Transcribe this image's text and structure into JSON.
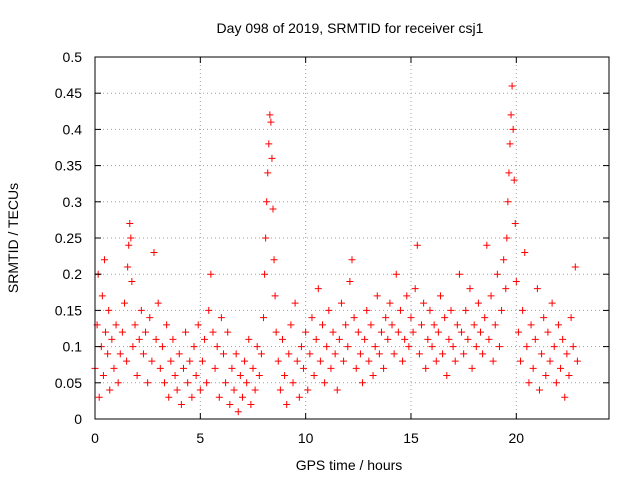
{
  "chart_data": {
    "type": "scatter",
    "title": "Day 098 of 2019, SRMTID for receiver csj1",
    "xlabel": "GPS time / hours",
    "ylabel": "SRMTID / TECUs",
    "xlim": [
      0,
      24.4
    ],
    "ylim": [
      0,
      0.5
    ],
    "x_ticks": [
      0,
      5,
      10,
      15,
      20
    ],
    "x_tick_labels": [
      "0",
      "5",
      "10",
      "15",
      "20"
    ],
    "y_ticks": [
      0,
      0.05,
      0.1,
      0.15,
      0.2,
      0.25,
      0.3,
      0.35,
      0.4,
      0.45,
      0.5
    ],
    "y_tick_labels": [
      "0",
      "0.05",
      "0.1",
      "0.15",
      "0.2",
      "0.25",
      "0.3",
      "0.35",
      "0.4",
      "0.45",
      "0.5"
    ],
    "grid": true,
    "marker": "+",
    "marker_color": "#ff0000",
    "series": [
      {
        "name": "csj1",
        "points": [
          [
            0.0,
            0.07
          ],
          [
            0.1,
            0.13
          ],
          [
            0.15,
            0.2
          ],
          [
            0.2,
            0.03
          ],
          [
            0.3,
            0.1
          ],
          [
            0.35,
            0.17
          ],
          [
            0.4,
            0.06
          ],
          [
            0.45,
            0.22
          ],
          [
            0.5,
            0.12
          ],
          [
            0.6,
            0.09
          ],
          [
            0.65,
            0.15
          ],
          [
            0.7,
            0.04
          ],
          [
            0.8,
            0.11
          ],
          [
            0.9,
            0.07
          ],
          [
            1.0,
            0.13
          ],
          [
            1.1,
            0.05
          ],
          [
            1.2,
            0.09
          ],
          [
            1.3,
            0.12
          ],
          [
            1.4,
            0.16
          ],
          [
            1.5,
            0.08
          ],
          [
            1.55,
            0.21
          ],
          [
            1.6,
            0.24
          ],
          [
            1.65,
            0.27
          ],
          [
            1.7,
            0.25
          ],
          [
            1.75,
            0.19
          ],
          [
            1.8,
            0.1
          ],
          [
            1.9,
            0.13
          ],
          [
            2.0,
            0.06
          ],
          [
            2.1,
            0.11
          ],
          [
            2.2,
            0.15
          ],
          [
            2.3,
            0.09
          ],
          [
            2.4,
            0.12
          ],
          [
            2.5,
            0.05
          ],
          [
            2.6,
            0.14
          ],
          [
            2.7,
            0.08
          ],
          [
            2.8,
            0.23
          ],
          [
            2.9,
            0.11
          ],
          [
            3.0,
            0.16
          ],
          [
            3.1,
            0.07
          ],
          [
            3.2,
            0.1
          ],
          [
            3.3,
            0.05
          ],
          [
            3.4,
            0.13
          ],
          [
            3.5,
            0.03
          ],
          [
            3.6,
            0.08
          ],
          [
            3.7,
            0.11
          ],
          [
            3.8,
            0.06
          ],
          [
            3.9,
            0.04
          ],
          [
            4.0,
            0.09
          ],
          [
            4.1,
            0.02
          ],
          [
            4.2,
            0.07
          ],
          [
            4.3,
            0.12
          ],
          [
            4.4,
            0.05
          ],
          [
            4.5,
            0.08
          ],
          [
            4.6,
            0.03
          ],
          [
            4.7,
            0.1
          ],
          [
            4.8,
            0.06
          ],
          [
            4.9,
            0.13
          ],
          [
            5.0,
            0.04
          ],
          [
            5.1,
            0.08
          ],
          [
            5.2,
            0.11
          ],
          [
            5.3,
            0.05
          ],
          [
            5.4,
            0.15
          ],
          [
            5.5,
            0.2
          ],
          [
            5.6,
            0.12
          ],
          [
            5.7,
            0.07
          ],
          [
            5.8,
            0.1
          ],
          [
            5.9,
            0.03
          ],
          [
            6.0,
            0.14
          ],
          [
            6.1,
            0.09
          ],
          [
            6.2,
            0.05
          ],
          [
            6.3,
            0.12
          ],
          [
            6.4,
            0.02
          ],
          [
            6.5,
            0.07
          ],
          [
            6.6,
            0.04
          ],
          [
            6.7,
            0.09
          ],
          [
            6.8,
            0.01
          ],
          [
            6.9,
            0.06
          ],
          [
            7.0,
            0.03
          ],
          [
            7.1,
            0.08
          ],
          [
            7.2,
            0.05
          ],
          [
            7.3,
            0.11
          ],
          [
            7.4,
            0.02
          ],
          [
            7.5,
            0.07
          ],
          [
            7.6,
            0.04
          ],
          [
            7.7,
            0.1
          ],
          [
            7.8,
            0.06
          ],
          [
            7.9,
            0.09
          ],
          [
            8.0,
            0.14
          ],
          [
            8.05,
            0.2
          ],
          [
            8.1,
            0.25
          ],
          [
            8.15,
            0.3
          ],
          [
            8.2,
            0.34
          ],
          [
            8.25,
            0.38
          ],
          [
            8.3,
            0.42
          ],
          [
            8.35,
            0.41
          ],
          [
            8.4,
            0.36
          ],
          [
            8.45,
            0.29
          ],
          [
            8.5,
            0.22
          ],
          [
            8.55,
            0.17
          ],
          [
            8.6,
            0.12
          ],
          [
            8.7,
            0.08
          ],
          [
            8.8,
            0.04
          ],
          [
            8.9,
            0.11
          ],
          [
            9.0,
            0.06
          ],
          [
            9.1,
            0.02
          ],
          [
            9.2,
            0.09
          ],
          [
            9.3,
            0.13
          ],
          [
            9.4,
            0.05
          ],
          [
            9.5,
            0.16
          ],
          [
            9.6,
            0.08
          ],
          [
            9.7,
            0.03
          ],
          [
            9.8,
            0.1
          ],
          [
            9.9,
            0.07
          ],
          [
            10.0,
            0.12
          ],
          [
            10.1,
            0.04
          ],
          [
            10.2,
            0.09
          ],
          [
            10.3,
            0.14
          ],
          [
            10.4,
            0.06
          ],
          [
            10.5,
            0.11
          ],
          [
            10.6,
            0.18
          ],
          [
            10.7,
            0.08
          ],
          [
            10.8,
            0.13
          ],
          [
            10.9,
            0.05
          ],
          [
            11.0,
            0.1
          ],
          [
            11.1,
            0.15
          ],
          [
            11.2,
            0.07
          ],
          [
            11.3,
            0.12
          ],
          [
            11.4,
            0.09
          ],
          [
            11.5,
            0.04
          ],
          [
            11.6,
            0.11
          ],
          [
            11.7,
            0.16
          ],
          [
            11.8,
            0.08
          ],
          [
            11.9,
            0.13
          ],
          [
            12.0,
            0.1
          ],
          [
            12.1,
            0.19
          ],
          [
            12.2,
            0.22
          ],
          [
            12.3,
            0.14
          ],
          [
            12.4,
            0.07
          ],
          [
            12.5,
            0.12
          ],
          [
            12.6,
            0.09
          ],
          [
            12.7,
            0.05
          ],
          [
            12.8,
            0.11
          ],
          [
            12.9,
            0.15
          ],
          [
            13.0,
            0.08
          ],
          [
            13.1,
            0.13
          ],
          [
            13.2,
            0.06
          ],
          [
            13.3,
            0.1
          ],
          [
            13.4,
            0.17
          ],
          [
            13.5,
            0.09
          ],
          [
            13.6,
            0.12
          ],
          [
            13.7,
            0.07
          ],
          [
            13.8,
            0.14
          ],
          [
            13.9,
            0.11
          ],
          [
            14.0,
            0.16
          ],
          [
            14.1,
            0.13
          ],
          [
            14.2,
            0.09
          ],
          [
            14.3,
            0.2
          ],
          [
            14.4,
            0.12
          ],
          [
            14.5,
            0.15
          ],
          [
            14.6,
            0.08
          ],
          [
            14.7,
            0.11
          ],
          [
            14.8,
            0.17
          ],
          [
            14.9,
            0.1
          ],
          [
            15.0,
            0.14
          ],
          [
            15.1,
            0.12
          ],
          [
            15.2,
            0.18
          ],
          [
            15.3,
            0.24
          ],
          [
            15.4,
            0.09
          ],
          [
            15.5,
            0.13
          ],
          [
            15.6,
            0.16
          ],
          [
            15.7,
            0.07
          ],
          [
            15.8,
            0.11
          ],
          [
            15.9,
            0.15
          ],
          [
            16.0,
            0.1
          ],
          [
            16.1,
            0.13
          ],
          [
            16.2,
            0.08
          ],
          [
            16.3,
            0.12
          ],
          [
            16.4,
            0.17
          ],
          [
            16.5,
            0.09
          ],
          [
            16.6,
            0.14
          ],
          [
            16.7,
            0.06
          ],
          [
            16.8,
            0.11
          ],
          [
            16.9,
            0.15
          ],
          [
            17.0,
            0.1
          ],
          [
            17.1,
            0.08
          ],
          [
            17.2,
            0.13
          ],
          [
            17.3,
            0.2
          ],
          [
            17.4,
            0.12
          ],
          [
            17.5,
            0.09
          ],
          [
            17.6,
            0.15
          ],
          [
            17.7,
            0.11
          ],
          [
            17.8,
            0.18
          ],
          [
            17.9,
            0.07
          ],
          [
            18.0,
            0.13
          ],
          [
            18.1,
            0.1
          ],
          [
            18.2,
            0.16
          ],
          [
            18.3,
            0.12
          ],
          [
            18.4,
            0.09
          ],
          [
            18.5,
            0.14
          ],
          [
            18.6,
            0.24
          ],
          [
            18.7,
            0.11
          ],
          [
            18.8,
            0.17
          ],
          [
            18.9,
            0.08
          ],
          [
            19.0,
            0.13
          ],
          [
            19.1,
            0.2
          ],
          [
            19.2,
            0.1
          ],
          [
            19.3,
            0.15
          ],
          [
            19.4,
            0.22
          ],
          [
            19.5,
            0.18
          ],
          [
            19.55,
            0.25
          ],
          [
            19.6,
            0.3
          ],
          [
            19.65,
            0.34
          ],
          [
            19.7,
            0.38
          ],
          [
            19.75,
            0.42
          ],
          [
            19.8,
            0.46
          ],
          [
            19.85,
            0.4
          ],
          [
            19.9,
            0.33
          ],
          [
            19.95,
            0.27
          ],
          [
            20.0,
            0.19
          ],
          [
            20.1,
            0.12
          ],
          [
            20.2,
            0.08
          ],
          [
            20.3,
            0.15
          ],
          [
            20.4,
            0.23
          ],
          [
            20.5,
            0.1
          ],
          [
            20.6,
            0.05
          ],
          [
            20.7,
            0.13
          ],
          [
            20.8,
            0.07
          ],
          [
            20.9,
            0.11
          ],
          [
            21.0,
            0.18
          ],
          [
            21.1,
            0.04
          ],
          [
            21.2,
            0.09
          ],
          [
            21.3,
            0.14
          ],
          [
            21.4,
            0.06
          ],
          [
            21.5,
            0.12
          ],
          [
            21.6,
            0.08
          ],
          [
            21.7,
            0.16
          ],
          [
            21.8,
            0.1
          ],
          [
            21.9,
            0.05
          ],
          [
            22.0,
            0.13
          ],
          [
            22.1,
            0.07
          ],
          [
            22.2,
            0.11
          ],
          [
            22.3,
            0.03
          ],
          [
            22.4,
            0.09
          ],
          [
            22.5,
            0.06
          ],
          [
            22.6,
            0.14
          ],
          [
            22.7,
            0.1
          ],
          [
            22.8,
            0.21
          ],
          [
            22.9,
            0.08
          ]
        ]
      }
    ]
  }
}
